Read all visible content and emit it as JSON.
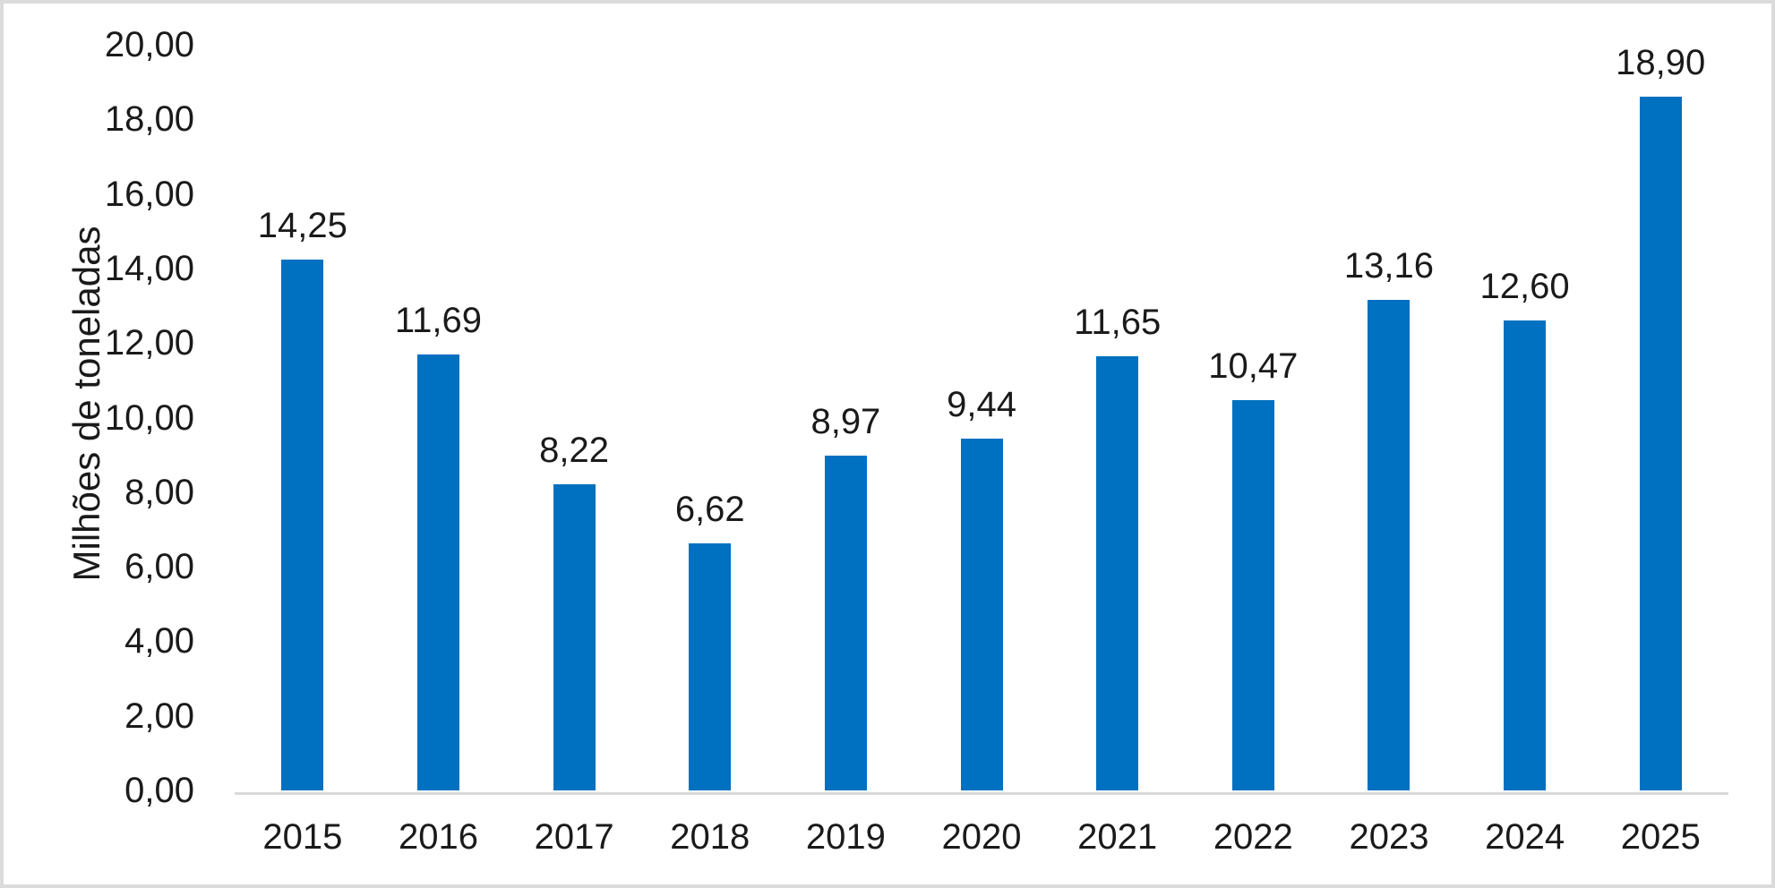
{
  "chart_data": {
    "type": "bar",
    "title": "",
    "xlabel": "",
    "ylabel": "Milhões de toneladas",
    "categories": [
      "2015",
      "2016",
      "2017",
      "2018",
      "2019",
      "2020",
      "2021",
      "2022",
      "2023",
      "2024",
      "2025"
    ],
    "values": [
      14.25,
      11.69,
      8.22,
      6.62,
      8.97,
      9.44,
      11.65,
      10.47,
      13.16,
      12.6,
      18.9
    ],
    "value_labels": [
      "14,25",
      "11,69",
      "8,22",
      "6,62",
      "8,97",
      "9,44",
      "11,65",
      "10,47",
      "13,16",
      "12,60",
      "18,90"
    ],
    "ylim": [
      0,
      20
    ],
    "ytick_step": 2,
    "yticks": [
      "20,00",
      "18,00",
      "16,00",
      "14,00",
      "12,00",
      "10,00",
      "8,00",
      "6,00",
      "4,00",
      "2,00",
      "0,00"
    ],
    "decimal_separator": ",",
    "grid": false,
    "legend": "none",
    "data_labels": "above-bars"
  },
  "colors": {
    "bar": "#0070C0",
    "axis_line": "#D9D9D9",
    "frame_border": "#DBDBDB",
    "text": "#1A1A1A",
    "background": "#FFFFFF"
  }
}
